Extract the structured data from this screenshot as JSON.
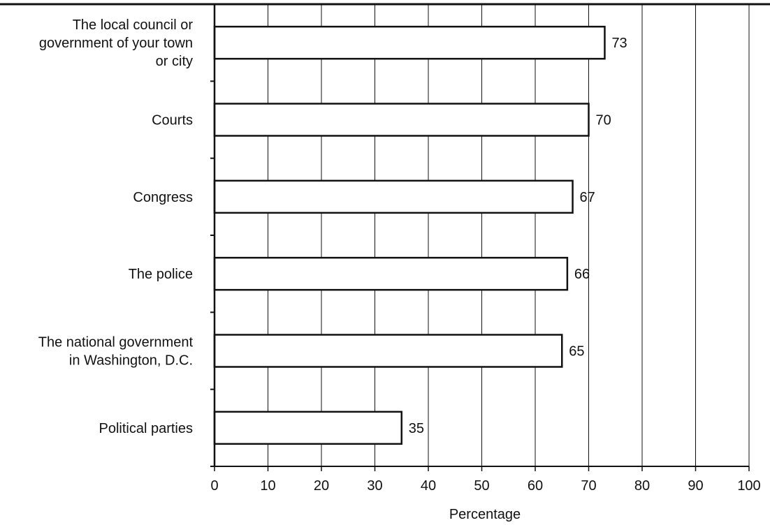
{
  "chart_data": {
    "type": "bar",
    "orientation": "horizontal",
    "categories": [
      "The local council or government of your town or city",
      "Courts",
      "Congress",
      "The police",
      "The national government in Washington, D.C.",
      "Political parties"
    ],
    "category_lines": [
      [
        "The local council or",
        "government of your town",
        "or city"
      ],
      [
        "Courts"
      ],
      [
        "Congress"
      ],
      [
        "The police"
      ],
      [
        "The national government",
        "in Washington, D.C."
      ],
      [
        "Political parties"
      ]
    ],
    "values": [
      73,
      70,
      67,
      66,
      65,
      35
    ],
    "data_labels": [
      "73",
      "70",
      "67",
      "66",
      "65",
      "35"
    ],
    "xlabel": "Percentage",
    "ylabel": "",
    "xlim": [
      0,
      100
    ],
    "x_ticks": [
      0,
      10,
      20,
      30,
      40,
      50,
      60,
      70,
      80,
      90,
      100
    ],
    "grid": "vertical",
    "legend": "none",
    "colors": {
      "bar_fill": "#ffffff",
      "bar_stroke": "#111111",
      "grid": "#111111",
      "text": "#111111"
    }
  }
}
